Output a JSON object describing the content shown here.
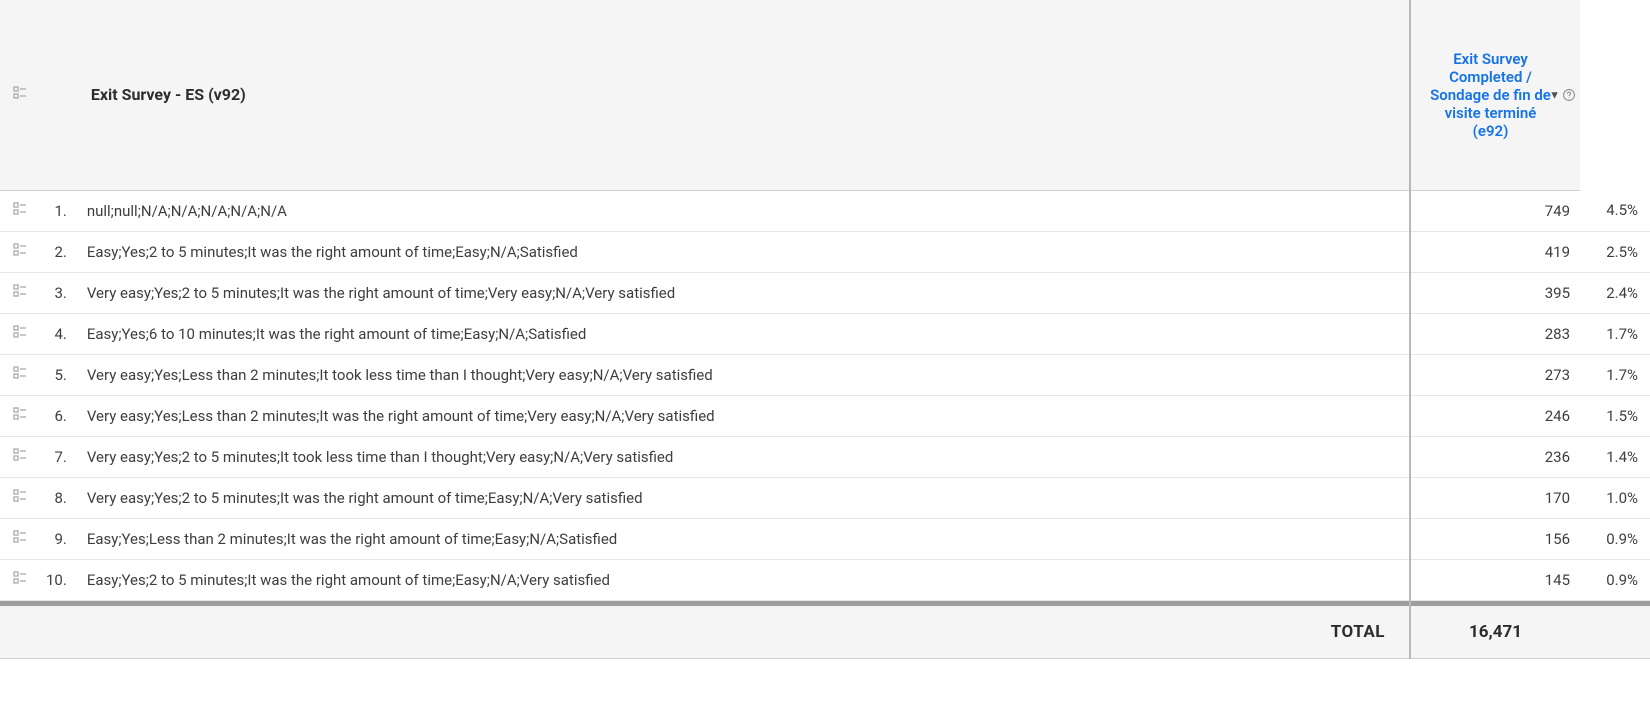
{
  "colors": {
    "header_bg": "#f5f5f5",
    "row_border": "#e6e6e6",
    "metric_border": "#b8b8b8",
    "metric_text": "#1473e6",
    "icon_color": "#b0b0b0",
    "text_color": "#3e3e3e",
    "divider_color": "#9e9e9e"
  },
  "dimension": {
    "label": "Exit Survey - ES (v92)"
  },
  "metric": {
    "label": "Exit Survey Completed / Sondage de fin de visite terminé (e92)",
    "sort": "desc"
  },
  "rows": [
    {
      "n": "1.",
      "label": "null;null;N/A;N/A;N/A;N/A;N/A",
      "value": "749",
      "pct": "4.5%"
    },
    {
      "n": "2.",
      "label": "Easy;Yes;2 to 5 minutes;It was the right amount of time;Easy;N/A;Satisfied",
      "value": "419",
      "pct": "2.5%"
    },
    {
      "n": "3.",
      "label": "Very easy;Yes;2 to 5 minutes;It was the right amount of time;Very easy;N/A;Very satisfied",
      "value": "395",
      "pct": "2.4%"
    },
    {
      "n": "4.",
      "label": "Easy;Yes;6 to 10 minutes;It was the right amount of time;Easy;N/A;Satisfied",
      "value": "283",
      "pct": "1.7%"
    },
    {
      "n": "5.",
      "label": "Very easy;Yes;Less than 2 minutes;It took less time than I thought;Very easy;N/A;Very satisfied",
      "value": "273",
      "pct": "1.7%"
    },
    {
      "n": "6.",
      "label": "Very easy;Yes;Less than 2 minutes;It was the right amount of time;Very easy;N/A;Very satisfied",
      "value": "246",
      "pct": "1.5%"
    },
    {
      "n": "7.",
      "label": "Very easy;Yes;2 to 5 minutes;It took less time than I thought;Very easy;N/A;Very satisfied",
      "value": "236",
      "pct": "1.4%"
    },
    {
      "n": "8.",
      "label": "Very easy;Yes;2 to 5 minutes;It was the right amount of time;Easy;N/A;Very satisfied",
      "value": "170",
      "pct": "1.0%"
    },
    {
      "n": "9.",
      "label": "Easy;Yes;Less than 2 minutes;It was the right amount of time;Easy;N/A;Satisfied",
      "value": "156",
      "pct": "0.9%"
    },
    {
      "n": "10.",
      "label": "Easy;Yes;2 to 5 minutes;It was the right amount of time;Easy;N/A;Very satisfied",
      "value": "145",
      "pct": "0.9%"
    }
  ],
  "total": {
    "label": "TOTAL",
    "value": "16,471"
  }
}
